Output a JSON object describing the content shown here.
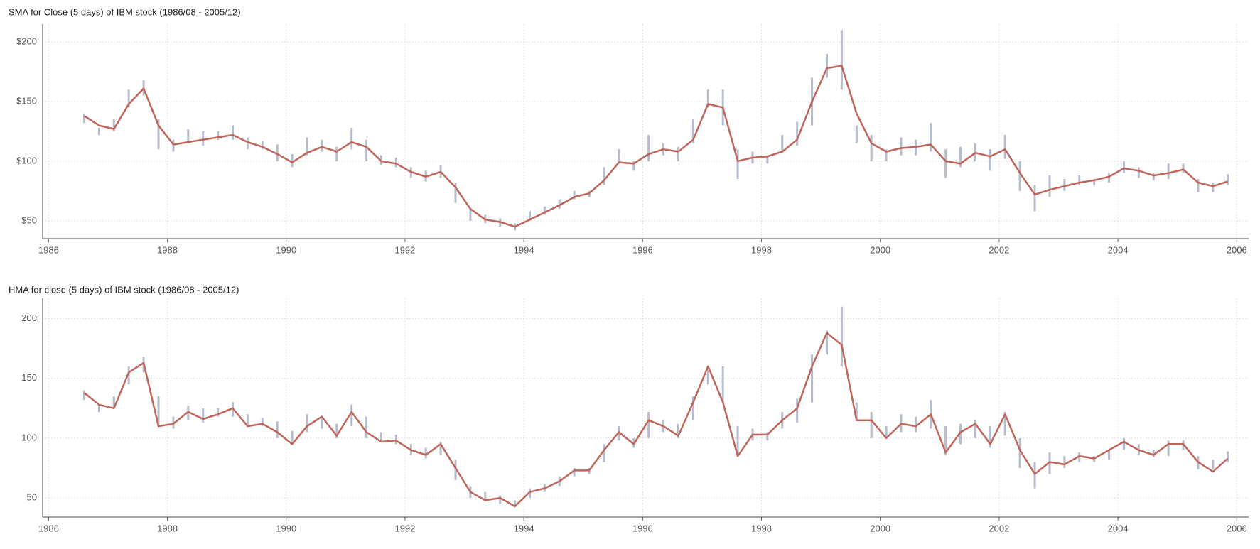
{
  "chart_data": [
    {
      "type": "range-ma",
      "title": "SMA for Close (5 days) of IBM stock (1986/08 - 2005/12)",
      "bar_color": "#b4bccd",
      "line_color": "#c0655a",
      "x": [
        1986.6,
        1986.85,
        1987.1,
        1987.35,
        1987.6,
        1987.85,
        1988.1,
        1988.35,
        1988.6,
        1988.85,
        1989.1,
        1989.35,
        1989.6,
        1989.85,
        1990.1,
        1990.35,
        1990.6,
        1990.85,
        1991.1,
        1991.35,
        1991.6,
        1991.85,
        1992.1,
        1992.35,
        1992.6,
        1992.85,
        1993.1,
        1993.35,
        1993.6,
        1993.85,
        1994.1,
        1994.35,
        1994.6,
        1994.85,
        1995.1,
        1995.35,
        1995.6,
        1995.85,
        1996.1,
        1996.35,
        1996.6,
        1996.85,
        1997.1,
        1997.35,
        1997.6,
        1997.85,
        1998.1,
        1998.35,
        1998.6,
        1998.85,
        1999.1,
        1999.35,
        1999.6,
        1999.85,
        2000.1,
        2000.35,
        2000.6,
        2000.85,
        2001.1,
        2001.35,
        2001.6,
        2001.85,
        2002.1,
        2002.35,
        2002.6,
        2002.85,
        2003.1,
        2003.35,
        2003.6,
        2003.85,
        2004.1,
        2004.35,
        2004.6,
        2004.85,
        2005.1,
        2005.35,
        2005.6,
        2005.85
      ],
      "high": [
        140,
        128,
        135,
        160,
        168,
        135,
        118,
        127,
        125,
        125,
        130,
        120,
        117,
        114,
        106,
        120,
        118,
        112,
        128,
        118,
        105,
        103,
        95,
        92,
        97,
        82,
        60,
        55,
        52,
        48,
        58,
        62,
        68,
        75,
        75,
        95,
        110,
        100,
        122,
        115,
        112,
        135,
        160,
        160,
        110,
        108,
        105,
        122,
        133,
        170,
        190,
        210,
        130,
        122,
        110,
        120,
        118,
        132,
        110,
        112,
        115,
        110,
        122,
        100,
        80,
        88,
        85,
        88,
        85,
        90,
        100,
        95,
        90,
        98,
        98,
        85,
        82,
        89
      ],
      "low": [
        132,
        122,
        125,
        145,
        155,
        110,
        108,
        115,
        113,
        118,
        118,
        110,
        110,
        100,
        95,
        105,
        108,
        100,
        110,
        100,
        97,
        95,
        86,
        83,
        86,
        65,
        50,
        48,
        45,
        42,
        50,
        55,
        60,
        68,
        70,
        80,
        98,
        92,
        100,
        105,
        100,
        115,
        145,
        130,
        85,
        98,
        98,
        108,
        113,
        130,
        170,
        160,
        115,
        100,
        100,
        105,
        105,
        108,
        86,
        95,
        100,
        92,
        102,
        75,
        58,
        70,
        75,
        80,
        80,
        82,
        90,
        86,
        84,
        85,
        90,
        74,
        74,
        80
      ],
      "ma": [
        138,
        130,
        127,
        148,
        161,
        130,
        114,
        116,
        118,
        120,
        122,
        116,
        112,
        106,
        99,
        107,
        112,
        108,
        116,
        112,
        100,
        98,
        91,
        87,
        91,
        78,
        60,
        51,
        49,
        45,
        51,
        57,
        63,
        70,
        73,
        84,
        99,
        98,
        106,
        110,
        108,
        118,
        148,
        145,
        100,
        103,
        104,
        108,
        118,
        150,
        178,
        180,
        140,
        115,
        108,
        111,
        112,
        114,
        100,
        98,
        107,
        104,
        110,
        90,
        72,
        76,
        79,
        82,
        84,
        87,
        94,
        92,
        88,
        90,
        93,
        82,
        79,
        83
      ],
      "xlim": [
        1985.9,
        2006.2
      ],
      "xticks": [
        1986,
        1988,
        1990,
        1992,
        1994,
        1996,
        1998,
        2000,
        2002,
        2004,
        2006
      ],
      "ylim": [
        35,
        215
      ],
      "yticks": [
        {
          "value": 50,
          "label": "$50"
        },
        {
          "value": 100,
          "label": "$100"
        },
        {
          "value": 150,
          "label": "$150"
        },
        {
          "value": 200,
          "label": "$200"
        }
      ],
      "grid": true
    },
    {
      "type": "range-ma",
      "title": "HMA for close (5 days) of IBM stock (1986/08 - 2005/12)",
      "bar_color": "#b4bccd",
      "line_color": "#c0655a",
      "x": [
        1986.6,
        1986.85,
        1987.1,
        1987.35,
        1987.6,
        1987.85,
        1988.1,
        1988.35,
        1988.6,
        1988.85,
        1989.1,
        1989.35,
        1989.6,
        1989.85,
        1990.1,
        1990.35,
        1990.6,
        1990.85,
        1991.1,
        1991.35,
        1991.6,
        1991.85,
        1992.1,
        1992.35,
        1992.6,
        1992.85,
        1993.1,
        1993.35,
        1993.6,
        1993.85,
        1994.1,
        1994.35,
        1994.6,
        1994.85,
        1995.1,
        1995.35,
        1995.6,
        1995.85,
        1996.1,
        1996.35,
        1996.6,
        1996.85,
        1997.1,
        1997.35,
        1997.6,
        1997.85,
        1998.1,
        1998.35,
        1998.6,
        1998.85,
        1999.1,
        1999.35,
        1999.6,
        1999.85,
        2000.1,
        2000.35,
        2000.6,
        2000.85,
        2001.1,
        2001.35,
        2001.6,
        2001.85,
        2002.1,
        2002.35,
        2002.6,
        2002.85,
        2003.1,
        2003.35,
        2003.6,
        2003.85,
        2004.1,
        2004.35,
        2004.6,
        2004.85,
        2005.1,
        2005.35,
        2005.6,
        2005.85
      ],
      "high": [
        140,
        128,
        135,
        160,
        168,
        135,
        118,
        127,
        125,
        125,
        130,
        120,
        117,
        114,
        106,
        120,
        118,
        112,
        128,
        118,
        105,
        103,
        95,
        92,
        97,
        82,
        60,
        55,
        52,
        48,
        58,
        62,
        68,
        75,
        75,
        95,
        110,
        100,
        122,
        115,
        112,
        135,
        160,
        160,
        110,
        108,
        105,
        122,
        133,
        170,
        190,
        210,
        130,
        122,
        110,
        120,
        118,
        132,
        110,
        112,
        115,
        110,
        122,
        100,
        80,
        88,
        85,
        88,
        85,
        90,
        100,
        95,
        90,
        98,
        98,
        85,
        82,
        89
      ],
      "low": [
        132,
        122,
        125,
        145,
        155,
        110,
        108,
        115,
        113,
        118,
        118,
        110,
        110,
        100,
        95,
        105,
        108,
        100,
        110,
        100,
        97,
        95,
        86,
        83,
        86,
        65,
        50,
        48,
        45,
        42,
        50,
        55,
        60,
        68,
        70,
        80,
        98,
        92,
        100,
        105,
        100,
        115,
        145,
        130,
        85,
        98,
        98,
        108,
        113,
        130,
        170,
        160,
        115,
        100,
        100,
        105,
        105,
        108,
        86,
        95,
        100,
        92,
        102,
        75,
        58,
        70,
        75,
        80,
        80,
        82,
        90,
        86,
        84,
        85,
        90,
        74,
        74,
        80
      ],
      "ma": [
        138,
        128,
        125,
        155,
        163,
        110,
        112,
        122,
        116,
        120,
        125,
        110,
        112,
        105,
        95,
        110,
        118,
        102,
        122,
        105,
        97,
        98,
        90,
        86,
        95,
        75,
        55,
        48,
        50,
        43,
        55,
        58,
        64,
        73,
        73,
        90,
        105,
        95,
        115,
        110,
        102,
        130,
        160,
        130,
        85,
        103,
        103,
        115,
        125,
        160,
        188,
        178,
        115,
        115,
        100,
        112,
        110,
        120,
        88,
        105,
        112,
        95,
        120,
        90,
        70,
        80,
        78,
        85,
        83,
        90,
        97,
        90,
        86,
        95,
        95,
        80,
        72,
        83
      ],
      "xlim": [
        1985.9,
        2006.2
      ],
      "xticks": [
        1986,
        1988,
        1990,
        1992,
        1994,
        1996,
        1998,
        2000,
        2002,
        2004,
        2006
      ],
      "ylim": [
        34,
        217
      ],
      "yticks": [
        50,
        100,
        150,
        200
      ],
      "grid": true
    }
  ]
}
